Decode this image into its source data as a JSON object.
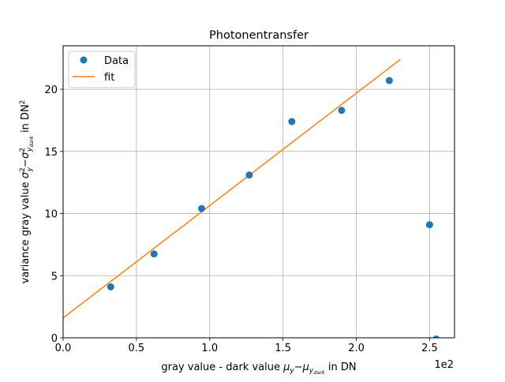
{
  "chart_data": {
    "type": "scatter",
    "title": "Photonentransfer",
    "xlabel": {
      "main": "gray value - dark value ",
      "mu_y": "μ",
      "sub_y": "y",
      "minus": "−",
      "mu_dark": "μ",
      "sub_dark_y": "y",
      "sub_dark_dark": "dark",
      "unit": " in DN"
    },
    "ylabel": {
      "main": "variance gray value ",
      "sigma": "σ",
      "sup2": "2",
      "sub_y": "y",
      "minus": "−",
      "sigma2": "σ",
      "sup2b": "2",
      "sub_dark_y": "y",
      "sub_dark_dark": "dark",
      "unit": "  in DN",
      "unit_sup": "2"
    },
    "x_multiplier_label": "1e2",
    "xlim": [
      0,
      2.67
    ],
    "ylim": [
      0,
      23.5
    ],
    "x_ticks": [
      0.0,
      0.5,
      1.0,
      1.5,
      2.0,
      2.5
    ],
    "x_tick_labels": [
      "0.0",
      "0.5",
      "1.0",
      "1.5",
      "2.0",
      "2.5"
    ],
    "y_ticks": [
      0,
      5,
      10,
      15,
      20
    ],
    "y_tick_labels": [
      "0",
      "5",
      "10",
      "15",
      "20"
    ],
    "grid": true,
    "legend_position": "top-left",
    "series": [
      {
        "name": "Data",
        "kind": "points",
        "color": "#1f77b4",
        "x": [
          0.325,
          0.62,
          0.945,
          1.27,
          1.56,
          1.9,
          2.225,
          2.5,
          2.545
        ],
        "y": [
          4.1,
          6.75,
          10.4,
          13.1,
          17.4,
          18.3,
          20.7,
          9.1,
          -0.1
        ]
      },
      {
        "name": "fit",
        "kind": "line",
        "color": "#ff7f0e",
        "x": [
          0.0,
          2.3
        ],
        "y": [
          1.6,
          22.4
        ]
      }
    ]
  }
}
